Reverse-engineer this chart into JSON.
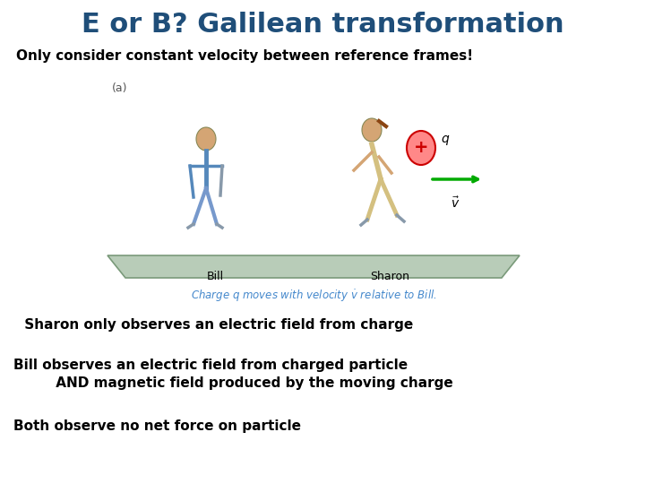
{
  "title": "E or B? Galilean transformation",
  "title_color": "#1F4E79",
  "title_fontsize": 22,
  "subtitle": "Only consider constant velocity between reference frames!",
  "subtitle_fontsize": 11,
  "subtitle_color": "#000000",
  "line1": " Sharon only observes an electric field from charge",
  "line1_fontsize": 11,
  "line2a": "Bill observes an electric field from charged particle",
  "line2b": "         AND magnetic field produced by the moving charge",
  "line2_fontsize": 11,
  "line3": "Both observe no net force on particle",
  "line3_fontsize": 11,
  "caption": "Charge q moves with velocity v̇ relative to Bill.",
  "caption_color": "#4488cc",
  "bg_color": "#ffffff",
  "platform_color": "#b0c8b0",
  "platform_edge": "#888888"
}
